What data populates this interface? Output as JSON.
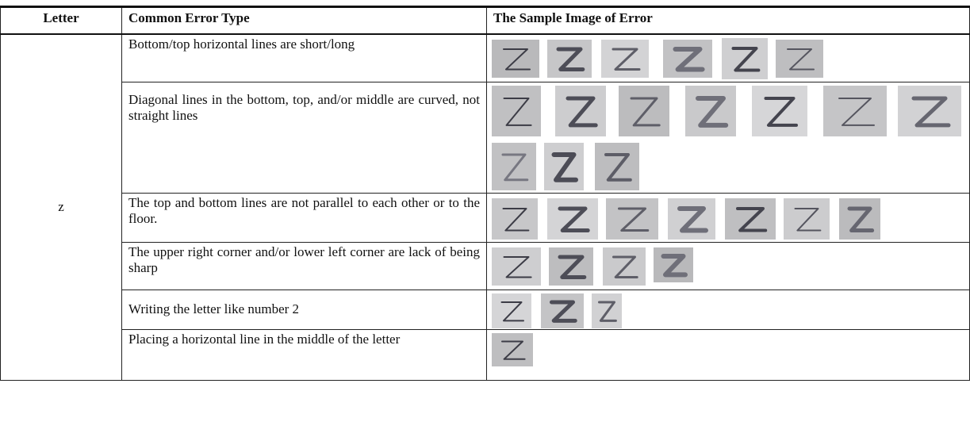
{
  "table": {
    "header": [
      "Letter",
      "Common Error Type",
      "The Sample Image of Error"
    ],
    "letter": "z",
    "rows": [
      "Bottom/top horizontal lines are short/long",
      "Diagonal lines in the bottom, top, and/or middle are curved, not straight lines",
      "The top and bottom lines are not parallel to each other or to the floor.",
      "The upper right corner and/or lower left corner are lack of being sharp",
      "Writing the letter like number 2",
      "Placing a horizontal line in the middle of the letter"
    ]
  }
}
